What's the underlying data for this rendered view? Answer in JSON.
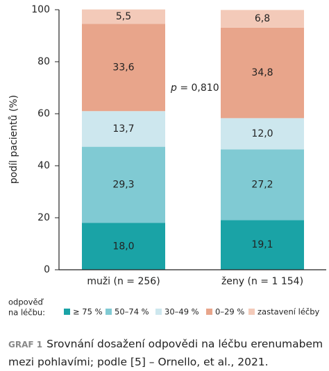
{
  "chart_data": {
    "type": "stacked-bar",
    "y_label": "podíl pacientů (%)",
    "categories": [
      "muži (n = 256)",
      "ženy (n = 1 154)"
    ],
    "series": [
      {
        "name": "≥ 75 %",
        "color": "#1aa3a6",
        "values": [
          18.0,
          19.1
        ],
        "value_labels": [
          "18,0",
          "19,1"
        ]
      },
      {
        "name": "50–74 %",
        "color": "#80cad3",
        "values": [
          29.3,
          27.2
        ],
        "value_labels": [
          "29,3",
          "27,2"
        ]
      },
      {
        "name": "30–49 %",
        "color": "#cde7ee",
        "values": [
          13.7,
          12.0
        ],
        "value_labels": [
          "13,7",
          "12,0"
        ]
      },
      {
        "name": "0–29 %",
        "color": "#e8a58b",
        "values": [
          33.6,
          34.8
        ],
        "value_labels": [
          "33,6",
          "34,8"
        ]
      },
      {
        "name": "zastavení léčby",
        "color": "#f3cab9",
        "values": [
          5.5,
          6.8
        ],
        "value_labels": [
          "5,5",
          "6,8"
        ]
      }
    ],
    "ylim": [
      0,
      100
    ],
    "yticks": [
      0,
      20,
      40,
      60,
      80,
      100
    ],
    "annotation": {
      "italic": "p",
      "text": " = 0,810"
    },
    "legend_title": [
      "odpověď",
      "na léčbu:"
    ],
    "caption": {
      "label": "GRAF 1",
      "text": "Srovnání dosažení odpovědi na léčbu erenumabem mezi pohlavími; podle [5] – Ornello, et al., 2021."
    }
  }
}
